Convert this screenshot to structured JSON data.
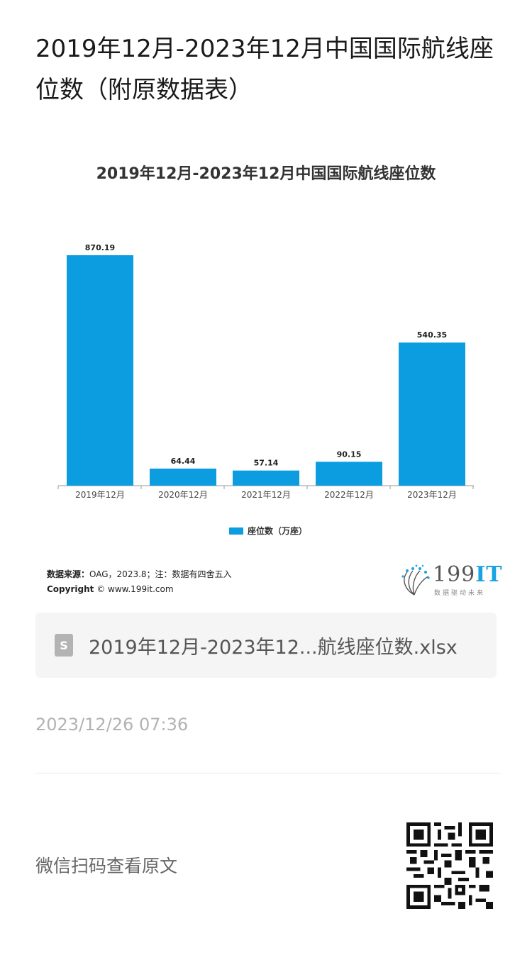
{
  "page": {
    "title": "2019年12月-2023年12月中国国际航线座位数（附原数据表）"
  },
  "chart_data": {
    "type": "bar",
    "title": "2019年12月-2023年12月中国国际航线座位数",
    "categories": [
      "2019年12月",
      "2020年12月",
      "2021年12月",
      "2022年12月",
      "2023年12月"
    ],
    "series": [
      {
        "name": "座位数（万座）",
        "values": [
          870.19,
          64.44,
          57.14,
          90.15,
          540.35
        ],
        "color": "#0b9de0"
      }
    ],
    "data_labels": [
      "870.19",
      "64.44",
      "57.14",
      "90.15",
      "540.35"
    ],
    "ylim": [
      0,
      870.19
    ],
    "grid": false,
    "legend_position": "bottom"
  },
  "chart_footer": {
    "source_label": "数据来源：",
    "source_text": "OAG，2023.8；注：数据有四舍五入",
    "copyright_label": "Copyright",
    "copyright_text": "© www.199it.com",
    "logo_main": "199",
    "logo_accent": "IT",
    "logo_sub": "数据驱动未来"
  },
  "attachment": {
    "icon": "spreadsheet-file-icon",
    "icon_glyph": "S",
    "file_name": "2019年12月-2023年12...航线座位数.xlsx"
  },
  "meta": {
    "timestamp": "2023/12/26 07:36"
  },
  "footer": {
    "scan_text": "微信扫码查看原文",
    "qr_icon": "qr-code-icon"
  }
}
